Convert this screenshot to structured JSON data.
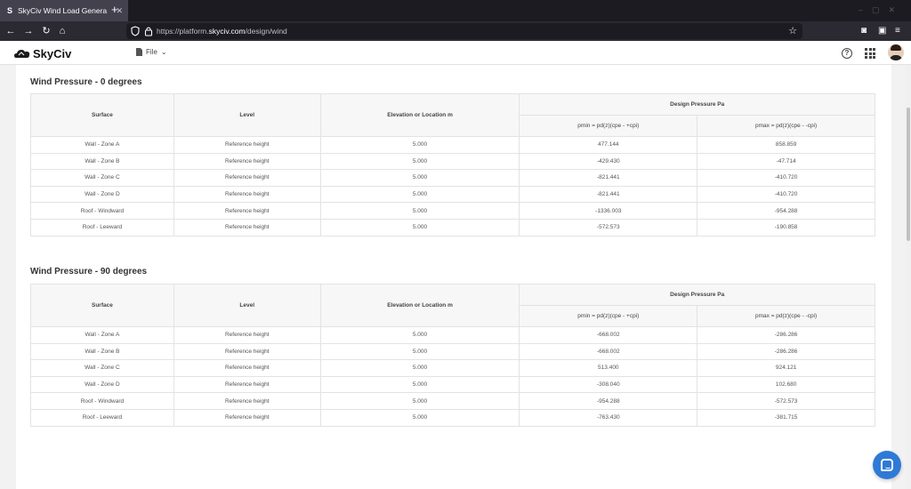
{
  "browser": {
    "tab_title": "SkyCiv Wind Load Genera",
    "tab_favicon": "S",
    "url_prefix": "https://platform.",
    "url_domain": "skyciv.com",
    "url_path": "/design/wind",
    "icons": [
      "back-icon",
      "forward-icon",
      "reload-icon",
      "home-icon",
      "shield-icon",
      "lock-icon",
      "star-icon",
      "pocket-icon",
      "reader-icon",
      "menu-icon"
    ]
  },
  "app": {
    "logo_text": "SkyCiv",
    "file_menu_label": "File",
    "help_symbol": "?"
  },
  "sections": [
    {
      "title": "Wind Pressure - 0 degrees",
      "headers": {
        "surface": "Surface",
        "level": "Level",
        "elevation": "Elevation or Location m",
        "design": "Design Pressure Pa",
        "pmin": "pmin = pd(z)(cpe - +cpi)",
        "pmax": "pmax = pd(z)(cpe - -cpi)"
      },
      "rows": [
        {
          "surface": "Wall - Zone A",
          "level": "Reference height",
          "elevation": "5.000",
          "pmin": "477.144",
          "pmax": "858.859"
        },
        {
          "surface": "Wall - Zone B",
          "level": "Reference height",
          "elevation": "5.000",
          "pmin": "-429.430",
          "pmax": "-47.714"
        },
        {
          "surface": "Wall - Zone C",
          "level": "Reference height",
          "elevation": "5.000",
          "pmin": "-821.441",
          "pmax": "-410.720"
        },
        {
          "surface": "Wall - Zone D",
          "level": "Reference height",
          "elevation": "5.000",
          "pmin": "-821.441",
          "pmax": "-410.720"
        },
        {
          "surface": "Roof - Windward",
          "level": "Reference height",
          "elevation": "5.000",
          "pmin": "-1336.003",
          "pmax": "-954.288"
        },
        {
          "surface": "Roof - Leeward",
          "level": "Reference height",
          "elevation": "5.000",
          "pmin": "-572.573",
          "pmax": "-190.858"
        }
      ]
    },
    {
      "title": "Wind Pressure - 90 degrees",
      "headers": {
        "surface": "Surface",
        "level": "Level",
        "elevation": "Elevation or Location m",
        "design": "Design Pressure Pa",
        "pmin": "pmin = pd(z)(cpe - +cpi)",
        "pmax": "pmax = pd(z)(cpe - -cpi)"
      },
      "rows": [
        {
          "surface": "Wall - Zone A",
          "level": "Reference height",
          "elevation": "5.000",
          "pmin": "-668.002",
          "pmax": "-286.286"
        },
        {
          "surface": "Wall - Zone B",
          "level": "Reference height",
          "elevation": "5.000",
          "pmin": "-668.002",
          "pmax": "-286.286"
        },
        {
          "surface": "Wall - Zone C",
          "level": "Reference height",
          "elevation": "5.000",
          "pmin": "513.400",
          "pmax": "924.121"
        },
        {
          "surface": "Wall - Zone D",
          "level": "Reference height",
          "elevation": "5.000",
          "pmin": "-308.040",
          "pmax": "102.680"
        },
        {
          "surface": "Roof - Windward",
          "level": "Reference height",
          "elevation": "5.000",
          "pmin": "-954.288",
          "pmax": "-572.573"
        },
        {
          "surface": "Roof - Leeward",
          "level": "Reference height",
          "elevation": "5.000",
          "pmin": "-763.430",
          "pmax": "-381.715"
        }
      ]
    }
  ],
  "colors": {
    "accent": "#2f7ad6",
    "browser_dark": "#1c1b22",
    "header_bg": "#f7f7f7"
  }
}
